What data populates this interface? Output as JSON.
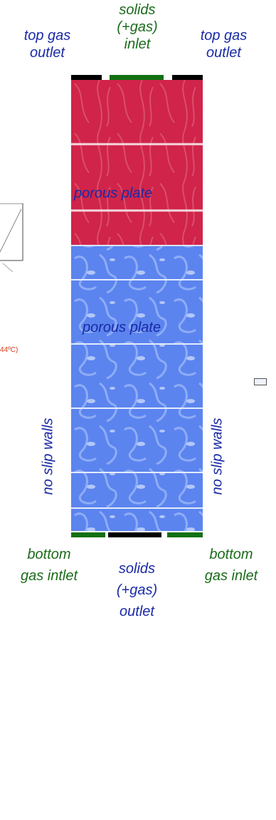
{
  "labels": {
    "top_left": [
      "top gas",
      "outlet"
    ],
    "top_center": [
      "solids",
      "(+gas)",
      "inlet"
    ],
    "top_right": [
      "top gas",
      "outlet"
    ],
    "porous_plate_1": "porous plate",
    "porous_plate_2": "porous plate",
    "wall_left": "no slip walls",
    "wall_right": "no slip walls",
    "bottom_left": [
      "bottom",
      "gas intlet"
    ],
    "bottom_center": [
      "solids",
      "(+gas)",
      "outlet"
    ],
    "bottom_right": [
      "bottom",
      "gas inlet"
    ]
  },
  "side_fragment_text": "44ºC)",
  "colors": {
    "text_blue": "#1a2aa6",
    "text_green": "#1b6b1b",
    "outlet_bar": "#000000",
    "inlet_bar": "#127012",
    "upper_fill": "#d0244a",
    "lower_fill": "#5c84ef"
  }
}
